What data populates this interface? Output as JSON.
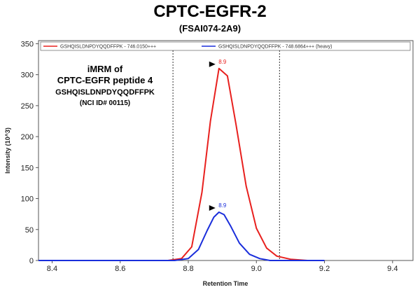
{
  "chart_data": {
    "type": "line",
    "title": "CPTC-EGFR-2",
    "subtitle": "(FSAI074-2A9)",
    "xlabel": "Retention Time",
    "ylabel": "Intensity (10^3)",
    "xlim": [
      8.36,
      9.46
    ],
    "ylim": [
      0,
      355
    ],
    "xticks": [
      8.4,
      8.6,
      8.8,
      9.0,
      9.2,
      9.4
    ],
    "yticks": [
      0,
      50,
      100,
      150,
      200,
      250,
      300,
      350
    ],
    "grid": false,
    "legend_position": "top",
    "integration_bounds": [
      8.755,
      9.068
    ],
    "series": [
      {
        "name": "GSHQISLDNPDYQQDFFPK - 746.0150+++",
        "color": "#e8201e",
        "x": [
          8.36,
          8.74,
          8.78,
          8.81,
          8.84,
          8.865,
          8.89,
          8.915,
          8.94,
          8.97,
          9.0,
          9.03,
          9.06,
          9.1,
          9.15,
          9.2
        ],
        "y": [
          0,
          0,
          3,
          22,
          110,
          225,
          310,
          298,
          220,
          120,
          52,
          20,
          7,
          2,
          0,
          0
        ],
        "peak_label": "8.9",
        "peak_x": 8.89,
        "peak_y": 310
      },
      {
        "name": "GSHQISLDNPDYQQDFFPK - 748.6864+++ (heavy)",
        "color": "#1a2edb",
        "x": [
          8.36,
          8.76,
          8.8,
          8.83,
          8.855,
          8.875,
          8.89,
          8.905,
          8.925,
          8.95,
          8.98,
          9.01,
          9.04,
          9.1,
          9.2
        ],
        "y": [
          0,
          0,
          3,
          18,
          48,
          70,
          78,
          74,
          55,
          28,
          10,
          3,
          0,
          0,
          0
        ],
        "peak_label": "8.9",
        "peak_x": 8.89,
        "peak_y": 78
      }
    ],
    "annotation": {
      "line1": "iMRM of",
      "line2": "CPTC-EGFR peptide 4",
      "line3": "GSHQISLDNPDYQQDFFPK",
      "line4": "(NCI ID# 00115)"
    }
  }
}
